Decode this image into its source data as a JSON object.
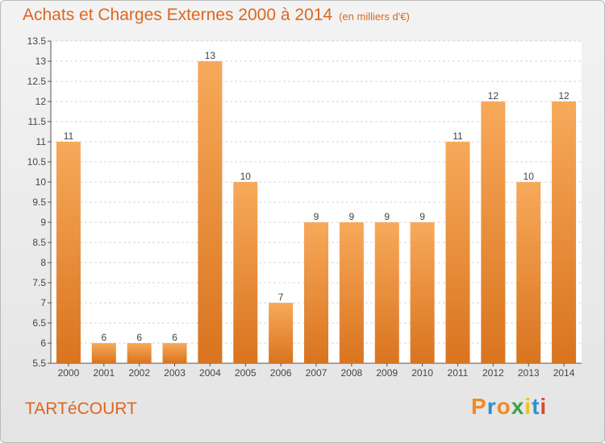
{
  "chart_data": {
    "type": "bar",
    "title": "Achats et Charges Externes 2000 à 2014",
    "subtitle": "(en milliers d'€)",
    "categories": [
      "2000",
      "2001",
      "2002",
      "2003",
      "2004",
      "2005",
      "2006",
      "2007",
      "2008",
      "2009",
      "2010",
      "2011",
      "2012",
      "2013",
      "2014"
    ],
    "values": [
      11,
      6,
      6,
      6,
      13,
      10,
      7,
      9,
      9,
      9,
      9,
      11,
      12,
      10,
      12
    ],
    "value_labels": [
      "11",
      "6",
      "6",
      "6",
      "13",
      "10",
      "7",
      "9",
      "9",
      "9",
      "9",
      "11",
      "12",
      "10",
      "12"
    ],
    "ylim": [
      5.5,
      13.5
    ],
    "yticks": [
      "5.5",
      "6",
      "6.5",
      "7",
      "7.5",
      "8",
      "8.5",
      "9",
      "9.5",
      "10",
      "10.5",
      "11",
      "11.5",
      "12",
      "12.5",
      "13",
      "13.5"
    ],
    "grid": true,
    "bar_color": "#f0a050"
  },
  "footer": {
    "commune": "TARTéCOURT",
    "logo": [
      "P",
      "r",
      "o",
      "x",
      "i",
      "t",
      "i"
    ],
    "logo_colors": [
      "#f08a24",
      "#2f8fd0",
      "#f08a24",
      "#3aa34a",
      "#f0c020",
      "#2f8fd0",
      "#e2462e"
    ]
  }
}
